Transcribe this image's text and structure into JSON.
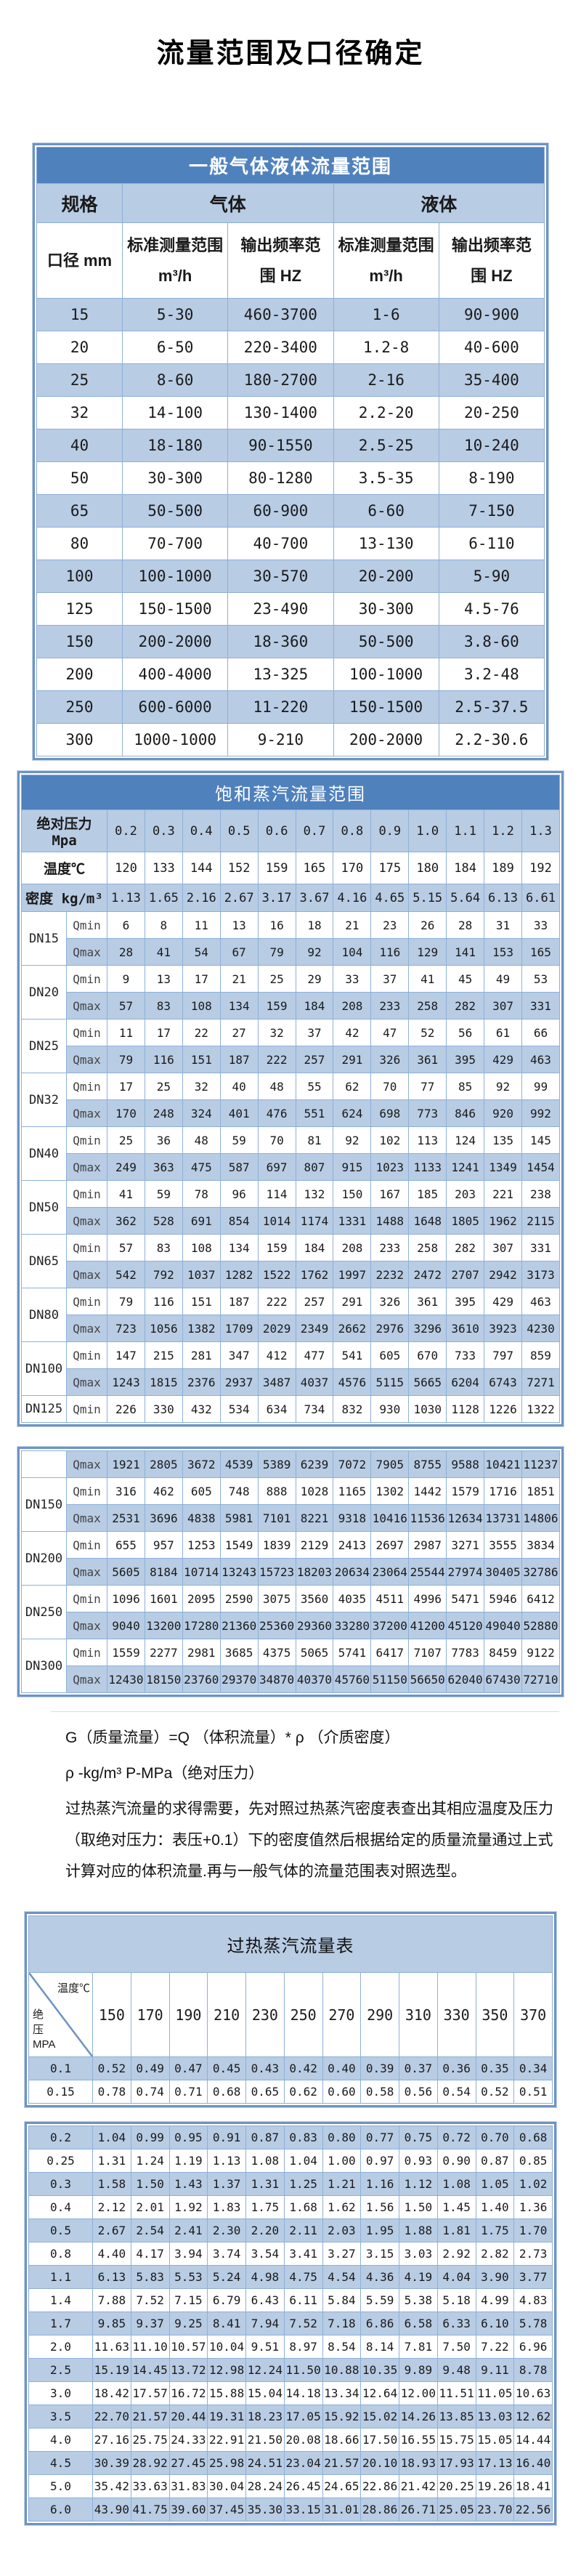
{
  "page_title": "流量范围及口径确定",
  "colors": {
    "header_bar": "#4f81bd",
    "row_shade": "#b8cce4",
    "grid": "#8db0d8",
    "frame": "#6d93c3"
  },
  "general_flow_table": {
    "title": "一般气体液体流量范围",
    "headers": {
      "spec": "规格",
      "gas": "气体",
      "liquid": "液体",
      "diameter": "口径 mm",
      "measure_range": "标准测量范围",
      "measure_unit": "m³/h",
      "freq_line1": "输出频率范",
      "freq_line2": "围 HZ"
    },
    "rows": [
      [
        "15",
        "5-30",
        "460-3700",
        "1-6",
        "90-900"
      ],
      [
        "20",
        "6-50",
        "220-3400",
        "1.2-8",
        "40-600"
      ],
      [
        "25",
        "8-60",
        "180-2700",
        "2-16",
        "35-400"
      ],
      [
        "32",
        "14-100",
        "130-1400",
        "2.2-20",
        "20-250"
      ],
      [
        "40",
        "18-180",
        "90-1550",
        "2.5-25",
        "10-240"
      ],
      [
        "50",
        "30-300",
        "80-1280",
        "3.5-35",
        "8-190"
      ],
      [
        "65",
        "50-500",
        "60-900",
        "6-60",
        "7-150"
      ],
      [
        "80",
        "70-700",
        "40-700",
        "13-130",
        "6-110"
      ],
      [
        "100",
        "100-1000",
        "30-570",
        "20-200",
        "5-90"
      ],
      [
        "125",
        "150-1500",
        "23-490",
        "30-300",
        "4.5-76"
      ],
      [
        "150",
        "200-2000",
        "18-360",
        "50-500",
        "3.8-60"
      ],
      [
        "200",
        "400-4000",
        "13-325",
        "100-1000",
        "3.2-48"
      ],
      [
        "250",
        "600-6000",
        "11-220",
        "150-1500",
        "2.5-37.5"
      ],
      [
        "300",
        "1000-1000",
        "9-210",
        "200-2000",
        "2.2-30.6"
      ]
    ]
  },
  "saturated_steam_table": {
    "title": "饱和蒸汽流量范围",
    "pressure_label": "绝对压力 Mpa",
    "pressures": [
      "0.2",
      "0.3",
      "0.4",
      "0.5",
      "0.6",
      "0.7",
      "0.8",
      "0.9",
      "1.0",
      "1.1",
      "1.2",
      "1.3"
    ],
    "temperature_label": "温度℃",
    "temperatures": [
      "120",
      "133",
      "144",
      "152",
      "159",
      "165",
      "170",
      "175",
      "180",
      "184",
      "189",
      "192"
    ],
    "density_label": "密度 kg/m³",
    "densities": [
      "1.13",
      "1.65",
      "2.16",
      "2.67",
      "3.17",
      "3.67",
      "4.16",
      "4.65",
      "5.15",
      "5.64",
      "6.13",
      "6.61"
    ],
    "block1": [
      {
        "dn": "DN15",
        "rows": [
          {
            "label": "Qmin",
            "values": [
              "6",
              "8",
              "11",
              "13",
              "16",
              "18",
              "21",
              "23",
              "26",
              "28",
              "31",
              "33"
            ]
          },
          {
            "label": "Qmax",
            "values": [
              "28",
              "41",
              "54",
              "67",
              "79",
              "92",
              "104",
              "116",
              "129",
              "141",
              "153",
              "165"
            ]
          }
        ]
      },
      {
        "dn": "DN20",
        "rows": [
          {
            "label": "Qmin",
            "values": [
              "9",
              "13",
              "17",
              "21",
              "25",
              "29",
              "33",
              "37",
              "41",
              "45",
              "49",
              "53"
            ]
          },
          {
            "label": "Qmax",
            "values": [
              "57",
              "83",
              "108",
              "134",
              "159",
              "184",
              "208",
              "233",
              "258",
              "282",
              "307",
              "331"
            ]
          }
        ]
      },
      {
        "dn": "DN25",
        "rows": [
          {
            "label": "Qmin",
            "values": [
              "11",
              "17",
              "22",
              "27",
              "32",
              "37",
              "42",
              "47",
              "52",
              "56",
              "61",
              "66"
            ]
          },
          {
            "label": "Qmax",
            "values": [
              "79",
              "116",
              "151",
              "187",
              "222",
              "257",
              "291",
              "326",
              "361",
              "395",
              "429",
              "463"
            ]
          }
        ]
      },
      {
        "dn": "DN32",
        "rows": [
          {
            "label": "Qmin",
            "values": [
              "17",
              "25",
              "32",
              "40",
              "48",
              "55",
              "62",
              "70",
              "77",
              "85",
              "92",
              "99"
            ]
          },
          {
            "label": "Qmax",
            "values": [
              "170",
              "248",
              "324",
              "401",
              "476",
              "551",
              "624",
              "698",
              "773",
              "846",
              "920",
              "992"
            ]
          }
        ]
      },
      {
        "dn": "DN40",
        "rows": [
          {
            "label": "Qmin",
            "values": [
              "25",
              "36",
              "48",
              "59",
              "70",
              "81",
              "92",
              "102",
              "113",
              "124",
              "135",
              "145"
            ]
          },
          {
            "label": "Qmax",
            "values": [
              "249",
              "363",
              "475",
              "587",
              "697",
              "807",
              "915",
              "1023",
              "1133",
              "1241",
              "1349",
              "1454"
            ]
          }
        ]
      },
      {
        "dn": "DN50",
        "rows": [
          {
            "label": "Qmin",
            "values": [
              "41",
              "59",
              "78",
              "96",
              "114",
              "132",
              "150",
              "167",
              "185",
              "203",
              "221",
              "238"
            ]
          },
          {
            "label": "Qmax",
            "values": [
              "362",
              "528",
              "691",
              "854",
              "1014",
              "1174",
              "1331",
              "1488",
              "1648",
              "1805",
              "1962",
              "2115"
            ]
          }
        ]
      },
      {
        "dn": "DN65",
        "rows": [
          {
            "label": "Qmin",
            "values": [
              "57",
              "83",
              "108",
              "134",
              "159",
              "184",
              "208",
              "233",
              "258",
              "282",
              "307",
              "331"
            ]
          },
          {
            "label": "Qmax",
            "values": [
              "542",
              "792",
              "1037",
              "1282",
              "1522",
              "1762",
              "1997",
              "2232",
              "2472",
              "2707",
              "2942",
              "3173"
            ]
          }
        ]
      },
      {
        "dn": "DN80",
        "rows": [
          {
            "label": "Qmin",
            "values": [
              "79",
              "116",
              "151",
              "187",
              "222",
              "257",
              "291",
              "326",
              "361",
              "395",
              "429",
              "463"
            ]
          },
          {
            "label": "Qmax",
            "values": [
              "723",
              "1056",
              "1382",
              "1709",
              "2029",
              "2349",
              "2662",
              "2976",
              "3296",
              "3610",
              "3923",
              "4230"
            ]
          }
        ]
      },
      {
        "dn": "DN100",
        "rows": [
          {
            "label": "Qmin",
            "values": [
              "147",
              "215",
              "281",
              "347",
              "412",
              "477",
              "541",
              "605",
              "670",
              "733",
              "797",
              "859"
            ]
          },
          {
            "label": "Qmax",
            "values": [
              "1243",
              "1815",
              "2376",
              "2937",
              "3487",
              "4037",
              "4576",
              "5115",
              "5665",
              "6204",
              "6743",
              "7271"
            ]
          }
        ]
      },
      {
        "dn": "DN125",
        "rows": [
          {
            "label": "Qmin",
            "values": [
              "226",
              "330",
              "432",
              "534",
              "634",
              "734",
              "832",
              "930",
              "1030",
              "1128",
              "1226",
              "1322"
            ]
          }
        ]
      }
    ],
    "block2": [
      {
        "dn": "",
        "rows": [
          {
            "label": "Qmax",
            "values": [
              "1921",
              "2805",
              "3672",
              "4539",
              "5389",
              "6239",
              "7072",
              "7905",
              "8755",
              "9588",
              "10421",
              "11237"
            ]
          }
        ]
      },
      {
        "dn": "DN150",
        "rows": [
          {
            "label": "Qmin",
            "values": [
              "316",
              "462",
              "605",
              "748",
              "888",
              "1028",
              "1165",
              "1302",
              "1442",
              "1579",
              "1716",
              "1851"
            ]
          },
          {
            "label": "Qmax",
            "values": [
              "2531",
              "3696",
              "4838",
              "5981",
              "7101",
              "8221",
              "9318",
              "10416",
              "11536",
              "12634",
              "13731",
              "14806"
            ]
          }
        ]
      },
      {
        "dn": "DN200",
        "rows": [
          {
            "label": "Qmin",
            "values": [
              "655",
              "957",
              "1253",
              "1549",
              "1839",
              "2129",
              "2413",
              "2697",
              "2987",
              "3271",
              "3555",
              "3834"
            ]
          },
          {
            "label": "Qmax",
            "values": [
              "5605",
              "8184",
              "10714",
              "13243",
              "15723",
              "18203",
              "20634",
              "23064",
              "25544",
              "27974",
              "30405",
              "32786"
            ]
          }
        ]
      },
      {
        "dn": "DN250",
        "rows": [
          {
            "label": "Qmin",
            "values": [
              "1096",
              "1601",
              "2095",
              "2590",
              "3075",
              "3560",
              "4035",
              "4511",
              "4996",
              "5471",
              "5946",
              "6412"
            ]
          },
          {
            "label": "Qmax",
            "values": [
              "9040",
              "13200",
              "17280",
              "21360",
              "25360",
              "29360",
              "33280",
              "37200",
              "41200",
              "45120",
              "49040",
              "52880"
            ]
          }
        ]
      },
      {
        "dn": "DN300",
        "rows": [
          {
            "label": "Qmin",
            "values": [
              "1559",
              "2277",
              "2981",
              "3685",
              "4375",
              "5065",
              "5741",
              "6417",
              "7107",
              "7783",
              "8459",
              "9122"
            ]
          },
          {
            "label": "Qmax",
            "values": [
              "12430",
              "18150",
              "23760",
              "29370",
              "34870",
              "40370",
              "45760",
              "51150",
              "56650",
              "62040",
              "67430",
              "72710"
            ]
          }
        ]
      }
    ]
  },
  "notes": {
    "formula": "G（质量流量）=Q （体积流量）* ρ （介质密度）",
    "units": "ρ -kg/m³ P-MPa（绝对压力）",
    "paragraph": "过热蒸汽流量的求得需要，先对照过热蒸汽密度表查出其相应温度及压力（取绝对压力：表压+0.1）下的密度值然后根据给定的质量流量通过上式计算对应的体积流量.再与一般气体的流量范围表对照选型。"
  },
  "superheated_steam_table": {
    "title": "过热蒸汽流量表",
    "corner_top": "温度℃",
    "corner_bottom": "绝\n压\nMPA",
    "temperatures": [
      "150",
      "170",
      "190",
      "210",
      "230",
      "250",
      "270",
      "290",
      "310",
      "330",
      "350",
      "370"
    ],
    "block1": [
      {
        "pressure": "0.1",
        "values": [
          "0.52",
          "0.49",
          "0.47",
          "0.45",
          "0.43",
          "0.42",
          "0.40",
          "0.39",
          "0.37",
          "0.36",
          "0.35",
          "0.34"
        ]
      },
      {
        "pressure": "0.15",
        "values": [
          "0.78",
          "0.74",
          "0.71",
          "0.68",
          "0.65",
          "0.62",
          "0.60",
          "0.58",
          "0.56",
          "0.54",
          "0.52",
          "0.51"
        ]
      }
    ],
    "block2": [
      {
        "pressure": "0.2",
        "values": [
          "1.04",
          "0.99",
          "0.95",
          "0.91",
          "0.87",
          "0.83",
          "0.80",
          "0.77",
          "0.75",
          "0.72",
          "0.70",
          "0.68"
        ]
      },
      {
        "pressure": "0.25",
        "values": [
          "1.31",
          "1.24",
          "1.19",
          "1.13",
          "1.08",
          "1.04",
          "1.00",
          "0.97",
          "0.93",
          "0.90",
          "0.87",
          "0.85"
        ]
      },
      {
        "pressure": "0.3",
        "values": [
          "1.58",
          "1.50",
          "1.43",
          "1.37",
          "1.31",
          "1.25",
          "1.21",
          "1.16",
          "1.12",
          "1.08",
          "1.05",
          "1.02"
        ]
      },
      {
        "pressure": "0.4",
        "values": [
          "2.12",
          "2.01",
          "1.92",
          "1.83",
          "1.75",
          "1.68",
          "1.62",
          "1.56",
          "1.50",
          "1.45",
          "1.40",
          "1.36"
        ]
      },
      {
        "pressure": "0.5",
        "values": [
          "2.67",
          "2.54",
          "2.41",
          "2.30",
          "2.20",
          "2.11",
          "2.03",
          "1.95",
          "1.88",
          "1.81",
          "1.75",
          "1.70"
        ]
      },
      {
        "pressure": "0.8",
        "values": [
          "4.40",
          "4.17",
          "3.94",
          "3.74",
          "3.54",
          "3.41",
          "3.27",
          "3.15",
          "3.03",
          "2.92",
          "2.82",
          "2.73"
        ]
      },
      {
        "pressure": "1.1",
        "values": [
          "6.13",
          "5.83",
          "5.53",
          "5.24",
          "4.98",
          "4.75",
          "4.54",
          "4.36",
          "4.19",
          "4.04",
          "3.90",
          "3.77"
        ]
      },
      {
        "pressure": "1.4",
        "values": [
          "7.88",
          "7.52",
          "7.15",
          "6.79",
          "6.43",
          "6.11",
          "5.84",
          "5.59",
          "5.38",
          "5.18",
          "4.99",
          "4.83"
        ]
      },
      {
        "pressure": "1.7",
        "values": [
          "9.85",
          "9.37",
          "9.25",
          "8.41",
          "7.94",
          "7.52",
          "7.18",
          "6.86",
          "6.58",
          "6.33",
          "6.10",
          "5.78"
        ]
      },
      {
        "pressure": "2.0",
        "values": [
          "11.63",
          "11.10",
          "10.57",
          "10.04",
          "9.51",
          "8.97",
          "8.54",
          "8.14",
          "7.81",
          "7.50",
          "7.22",
          "6.96"
        ]
      },
      {
        "pressure": "2.5",
        "values": [
          "15.19",
          "14.45",
          "13.72",
          "12.98",
          "12.24",
          "11.50",
          "10.88",
          "10.35",
          "9.89",
          "9.48",
          "9.11",
          "8.78"
        ]
      },
      {
        "pressure": "3.0",
        "values": [
          "18.42",
          "17.57",
          "16.72",
          "15.88",
          "15.04",
          "14.18",
          "13.34",
          "12.64",
          "12.00",
          "11.51",
          "11.05",
          "10.63"
        ]
      },
      {
        "pressure": "3.5",
        "values": [
          "22.70",
          "21.57",
          "20.44",
          "19.31",
          "18.23",
          "17.05",
          "15.92",
          "15.02",
          "14.26",
          "13.85",
          "13.03",
          "12.62"
        ]
      },
      {
        "pressure": "4.0",
        "values": [
          "27.16",
          "25.75",
          "24.33",
          "22.91",
          "21.50",
          "20.08",
          "18.66",
          "17.50",
          "16.55",
          "15.75",
          "15.05",
          "14.44"
        ]
      },
      {
        "pressure": "4.5",
        "values": [
          "30.39",
          "28.92",
          "27.45",
          "25.98",
          "24.51",
          "23.04",
          "21.57",
          "20.10",
          "18.93",
          "17.93",
          "17.13",
          "16.40"
        ]
      },
      {
        "pressure": "5.0",
        "values": [
          "35.42",
          "33.63",
          "31.83",
          "30.04",
          "28.24",
          "26.45",
          "24.65",
          "22.86",
          "21.42",
          "20.25",
          "19.26",
          "18.41"
        ]
      },
      {
        "pressure": "6.0",
        "values": [
          "43.90",
          "41.75",
          "39.60",
          "37.45",
          "35.30",
          "33.15",
          "31.01",
          "28.86",
          "26.71",
          "25.05",
          "23.70",
          "22.56"
        ]
      }
    ]
  }
}
